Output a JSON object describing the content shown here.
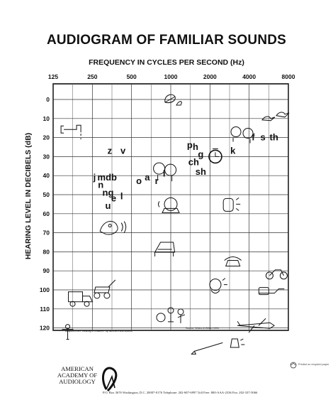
{
  "chart_data": {
    "type": "scatter",
    "title": "AUDIOGRAM OF FAMILIAR SOUNDS",
    "xlabel": "FREQUENCY IN CYCLES PER SECOND (Hz)",
    "ylabel": "HEARING LEVEL IN DECIBELS (dB)",
    "x_scale": "log",
    "x_ticks": [
      "125",
      "250",
      "500",
      "1000",
      "2000",
      "4000",
      "8000"
    ],
    "y_ticks": [
      "0",
      "10",
      "20",
      "30",
      "40",
      "50",
      "60",
      "70",
      "80",
      "90",
      "100",
      "110",
      "120"
    ],
    "y_reversed": true,
    "grid": true,
    "speech_sounds": [
      {
        "text": "z",
        "x": 340,
        "y": 27
      },
      {
        "text": "v",
        "x": 430,
        "y": 27
      },
      {
        "text": "j",
        "x": 260,
        "y": 41
      },
      {
        "text": "mdb",
        "x": 325,
        "y": 41
      },
      {
        "text": "n",
        "x": 290,
        "y": 45
      },
      {
        "text": "ng",
        "x": 330,
        "y": 49
      },
      {
        "text": "e",
        "x": 365,
        "y": 52
      },
      {
        "text": "l",
        "x": 420,
        "y": 51
      },
      {
        "text": "u",
        "x": 330,
        "y": 56
      },
      {
        "text": "o",
        "x": 570,
        "y": 43
      },
      {
        "text": "a",
        "x": 660,
        "y": 41
      },
      {
        "text": "r",
        "x": 780,
        "y": 43
      },
      {
        "text": "i",
        "x": 890,
        "y": 39
      },
      {
        "text": "p",
        "x": 1400,
        "y": 24
      },
      {
        "text": "h",
        "x": 1550,
        "y": 25
      },
      {
        "text": "g",
        "x": 1700,
        "y": 29
      },
      {
        "text": "ch",
        "x": 1500,
        "y": 33
      },
      {
        "text": "sh",
        "x": 1700,
        "y": 38
      },
      {
        "text": "k",
        "x": 3000,
        "y": 27
      },
      {
        "text": "f",
        "x": 4300,
        "y": 20
      },
      {
        "text": "s",
        "x": 5100,
        "y": 20
      },
      {
        "text": "th",
        "x": 6200,
        "y": 20
      }
    ],
    "sound_sources": [
      {
        "name": "dripping-faucet",
        "x": 180,
        "y": 15
      },
      {
        "name": "leaves-rustling",
        "x": 1000,
        "y": 0
      },
      {
        "name": "birds-chirping",
        "x": 6000,
        "y": 10
      },
      {
        "name": "people-whispering",
        "x": 3500,
        "y": 17
      },
      {
        "name": "clock-ticking",
        "x": 2200,
        "y": 30
      },
      {
        "name": "people-talking",
        "x": 900,
        "y": 37
      },
      {
        "name": "refrigerator-humming",
        "x": 1000,
        "y": 55
      },
      {
        "name": "telephone-ringing",
        "x": 2800,
        "y": 55
      },
      {
        "name": "dog-barking",
        "x": 350,
        "y": 67
      },
      {
        "name": "piano",
        "x": 900,
        "y": 78
      },
      {
        "name": "telephone",
        "x": 3000,
        "y": 86
      },
      {
        "name": "motorcycle",
        "x": 6500,
        "y": 91
      },
      {
        "name": "baby-crying",
        "x": 2200,
        "y": 98
      },
      {
        "name": "lawn-mower",
        "x": 300,
        "y": 100
      },
      {
        "name": "truck",
        "x": 200,
        "y": 104
      },
      {
        "name": "chainsaw",
        "x": 5800,
        "y": 101
      },
      {
        "name": "music-band",
        "x": 1000,
        "y": 113
      },
      {
        "name": "jet-plane",
        "x": 4500,
        "y": 118
      },
      {
        "name": "jackhammer",
        "x": 170,
        "y": 123
      },
      {
        "name": "rifle",
        "x": 2000,
        "y": 130
      },
      {
        "name": "siren",
        "x": 3100,
        "y": 128
      }
    ],
    "credits": [
      "Adapted from \"Hearing in Children\" by Northern and Downs",
      "Source: Widex & Wilber 1991"
    ]
  },
  "footer": {
    "org_line1": "AMERICAN",
    "org_line2": "ACADEMY OF",
    "org_line3": "AUDIOLOGY",
    "address": "P.O. Box 3676  Washington, D.C. 20007-0176  Telephone: 202-687-6997  Toll Free: 800-AAA-2336  Fax: 202-337-5066",
    "recycle_note": "Printed on recycled paper"
  }
}
